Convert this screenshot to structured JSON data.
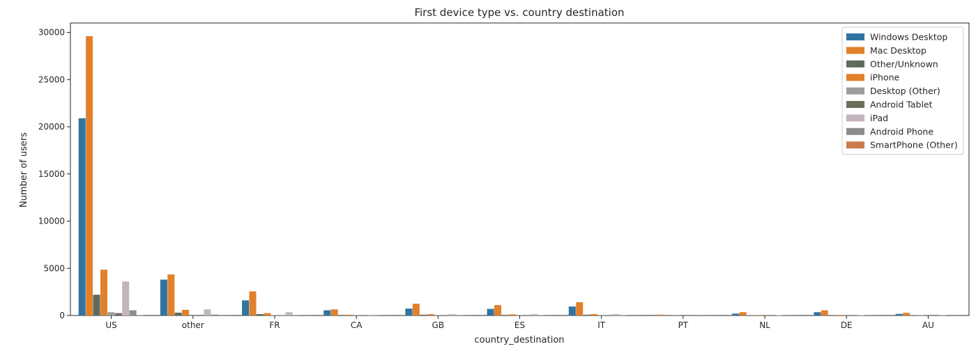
{
  "chart_data": {
    "type": "bar",
    "title": "First device type vs. country destination",
    "xlabel": "country_destination",
    "ylabel": "Number of users",
    "ylim": [
      0,
      31000
    ],
    "yticks": [
      0,
      5000,
      10000,
      15000,
      20000,
      25000,
      30000
    ],
    "grid": false,
    "legend_position": "top-right",
    "categories": [
      "US",
      "other",
      "FR",
      "CA",
      "GB",
      "ES",
      "IT",
      "PT",
      "NL",
      "DE",
      "AU"
    ],
    "series": [
      {
        "name": "Windows Desktop",
        "color": "#3274a1",
        "values": [
          20900,
          3800,
          1600,
          550,
          730,
          700,
          950,
          60,
          200,
          350,
          170
        ]
      },
      {
        "name": "Mac Desktop",
        "color": "#e1812c",
        "values": [
          29600,
          4350,
          2550,
          650,
          1250,
          1100,
          1400,
          90,
          350,
          550,
          280
        ]
      },
      {
        "name": "Other/Unknown",
        "color": "#5f6b5f",
        "values": [
          2200,
          300,
          150,
          60,
          80,
          60,
          80,
          10,
          30,
          50,
          20
        ]
      },
      {
        "name": "iPhone",
        "color": "#e1812c",
        "values": [
          4850,
          600,
          250,
          80,
          150,
          120,
          150,
          20,
          50,
          60,
          30
        ]
      },
      {
        "name": "Desktop (Other)",
        "color": "#9c9c9c",
        "values": [
          350,
          80,
          50,
          20,
          20,
          20,
          20,
          5,
          10,
          10,
          5
        ]
      },
      {
        "name": "Android Tablet",
        "color": "#6d6d5a",
        "values": [
          250,
          60,
          40,
          15,
          20,
          15,
          20,
          5,
          10,
          10,
          5
        ]
      },
      {
        "name": "iPad",
        "color": "#c4b4bd",
        "values": [
          3600,
          650,
          350,
          60,
          150,
          150,
          150,
          10,
          40,
          50,
          30
        ]
      },
      {
        "name": "Android Phone",
        "color": "#8c8c8c",
        "values": [
          550,
          100,
          50,
          20,
          30,
          30,
          30,
          5,
          10,
          10,
          5
        ]
      },
      {
        "name": "SmartPhone (Other)",
        "color": "#c87b4e",
        "values": [
          30,
          10,
          5,
          2,
          3,
          3,
          3,
          1,
          1,
          1,
          1
        ]
      }
    ]
  }
}
